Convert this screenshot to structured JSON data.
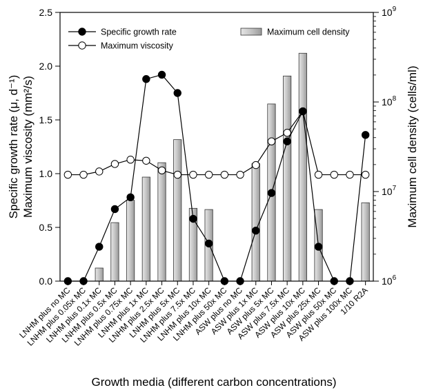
{
  "chart_data": {
    "type": "bar+line",
    "categories": [
      "LNHM plus no MC",
      "LNHM plus 0.05x MC",
      "LNHM plus 0.1x MC",
      "LNHM plus 0.5x MC",
      "LNHM plus 0.75x MC",
      "LNHM plus 1x MC",
      "LNHM plus 2.5x MC",
      "LNHM plus 5x MC",
      "LNHM plus 7.5x MC",
      "LNHM plus 10x MC",
      "LNHM plus 50x MC",
      "ASW plus no MC",
      "ASW plus 1x MC",
      "ASW plus 5x MC",
      "ASW plus 7.5x MC",
      "ASW plus 10x MC",
      "ASW plus 25x MC",
      "ASW plus 50x MC",
      "ASW plus 100x MC",
      "1/10 R2A"
    ],
    "series": [
      {
        "name": "Specific growth rate",
        "axis": "left",
        "style": "line-filled-circle",
        "values": [
          0,
          0,
          0.32,
          0.67,
          0.78,
          1.88,
          1.92,
          1.75,
          0.58,
          0.35,
          0,
          0,
          0.47,
          0.82,
          1.3,
          1.58,
          0.32,
          0,
          0,
          1.36
        ]
      },
      {
        "name": "Maximum viscosity",
        "axis": "left",
        "style": "line-open-circle",
        "values": [
          0.99,
          0.99,
          1.02,
          1.09,
          1.13,
          1.12,
          1.03,
          0.99,
          0.99,
          0.99,
          0.99,
          0.99,
          1.08,
          1.3,
          1.38,
          1.58,
          0.99,
          0.99,
          0.99,
          0.99
        ]
      },
      {
        "name": "Maximum cell density",
        "axis": "right",
        "style": "bar",
        "values": [
          null,
          null,
          1400000.0,
          4500000.0,
          8000000.0,
          14500000.0,
          21000000.0,
          38000000.0,
          6500000.0,
          6300000.0,
          null,
          null,
          20500000.0,
          95000000.0,
          195000000.0,
          350000000.0,
          6300000.0,
          null,
          null,
          7500000.0
        ]
      }
    ],
    "xlabel": "Growth media (different carbon concentrations)",
    "ylabel_left_line1": "Specific growth rate (μ, d⁻¹)",
    "ylabel_left_line2": "Maximum viscosity (mm²/s)",
    "ylabel_right": "Maximum cell density (cells/ml)",
    "ylim_left": [
      0,
      2.5
    ],
    "yticks_left": [
      "0.0",
      "0.5",
      "1.0",
      "1.5",
      "2.0",
      "2.5"
    ],
    "ylim_right": [
      1000000,
      1000000000
    ],
    "yscale_right": "log",
    "yticks_right": [
      {
        "value": 1000000,
        "base": "10",
        "exp": "6"
      },
      {
        "value": 10000000,
        "base": "10",
        "exp": "7"
      },
      {
        "value": 100000000,
        "base": "10",
        "exp": "8"
      },
      {
        "value": 1000000000,
        "base": "10",
        "exp": "9"
      }
    ],
    "grid": false,
    "legend": [
      {
        "label": "Specific growth rate",
        "marker": "filled-circle",
        "placement": "top-left"
      },
      {
        "label": "Maximum viscosity",
        "marker": "open-circle",
        "placement": "top-left"
      },
      {
        "label": "Maximum cell density",
        "marker": "bar",
        "placement": "top-right"
      }
    ],
    "colors": {
      "bar_fill": "#bdbdbd",
      "bar_stroke": "#333333",
      "line": "#000000",
      "marker_fill": "#000000",
      "marker_open": "#ffffff"
    }
  }
}
